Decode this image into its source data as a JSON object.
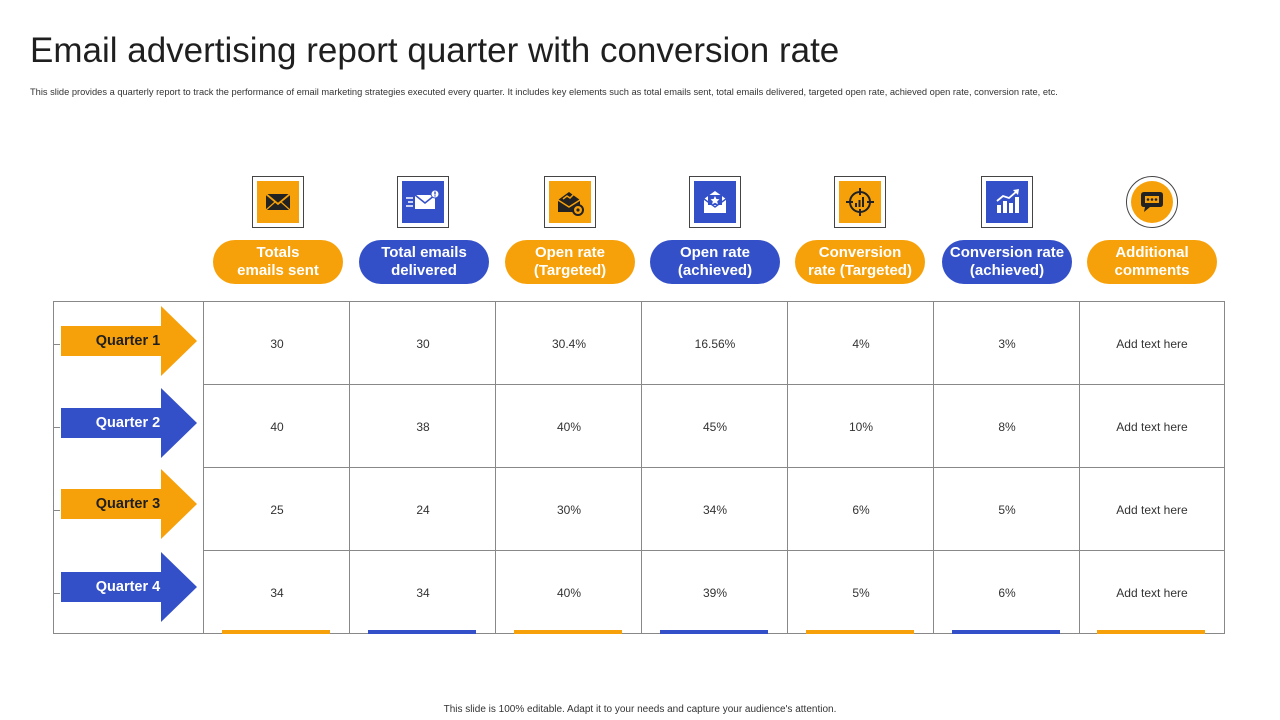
{
  "title": "Email advertising report quarter with conversion rate",
  "subtitle": "This slide provides a quarterly report to track the performance of email marketing strategies executed every quarter. It includes key elements  such as total emails  sent, total emails  delivered, targeted open rate, achieved open rate, conversion rate, etc.",
  "colors": {
    "orange": "#f7a10a",
    "blue": "#3450c8"
  },
  "columns": [
    {
      "line1": "Totals",
      "line2": "emails sent",
      "color": "orange",
      "icon": "envelope-icon"
    },
    {
      "line1": "Total emails",
      "line2": "delivered",
      "color": "blue",
      "icon": "email-delivered-icon"
    },
    {
      "line1": "Open rate",
      "line2": "(Targeted)",
      "color": "orange",
      "icon": "open-envelope-target-icon"
    },
    {
      "line1": "Open rate",
      "line2": "(achieved)",
      "color": "blue",
      "icon": "open-envelope-star-icon"
    },
    {
      "line1": "Conversion",
      "line2": "rate (Targeted)",
      "color": "orange",
      "icon": "target-crosshair-icon"
    },
    {
      "line1": "Conversion rate",
      "line2": "(achieved)",
      "color": "blue",
      "icon": "growth-chart-icon"
    },
    {
      "line1": "Additional",
      "line2": "comments",
      "color": "orange",
      "icon": "chat-bubble-icon"
    }
  ],
  "rows": [
    {
      "label": "Quarter 1",
      "color": "orange",
      "values": [
        "30",
        "30",
        "30.4%",
        "16.56%",
        "4%",
        "3%",
        "Add text here"
      ]
    },
    {
      "label": "Quarter 2",
      "color": "blue",
      "values": [
        "40",
        "38",
        "40%",
        "45%",
        "10%",
        "8%",
        "Add text here"
      ]
    },
    {
      "label": "Quarter 3",
      "color": "orange",
      "values": [
        "25",
        "24",
        "30%",
        "34%",
        "6%",
        "5%",
        "Add text here"
      ]
    },
    {
      "label": "Quarter 4",
      "color": "blue",
      "values": [
        "34",
        "34",
        "40%",
        "39%",
        "5%",
        "6%",
        "Add text here"
      ]
    }
  ],
  "footer": "This slide is 100% editable.  Adapt it to your needs and capture your audience's attention."
}
